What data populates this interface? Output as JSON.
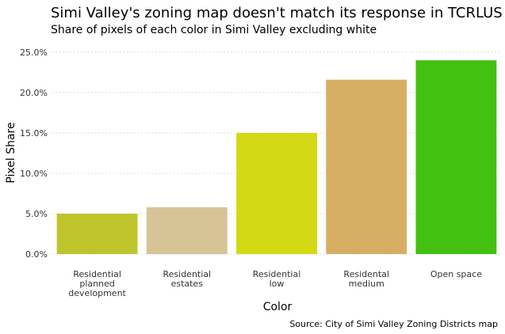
{
  "title": "Simi Valley's zoning map doesn't match its response in TCRLUS",
  "subtitle": "Share of pixels of each color in Simi Valley excluding white",
  "caption": "Source: City of Simi Valley Zoning Districts map",
  "chart_data": {
    "type": "bar",
    "categories": [
      [
        "Residential",
        "planned",
        "development"
      ],
      [
        "Residential",
        "estates"
      ],
      [
        "Residential",
        "low"
      ],
      [
        "Residental",
        "medium"
      ],
      [
        "Open space"
      ]
    ],
    "values": [
      0.05,
      0.058,
      0.15,
      0.216,
      0.24
    ],
    "colors": [
      "#bfc42c",
      "#d6c396",
      "#d4d915",
      "#d6ae63",
      "#43c011"
    ],
    "xlabel": "Color",
    "ylabel": "Pixel Share",
    "ylim": [
      0,
      0.25
    ],
    "yticks": [
      "0.0%",
      "5.0%",
      "10.0%",
      "15.0%",
      "20.0%",
      "25.0%"
    ],
    "grid": true
  }
}
